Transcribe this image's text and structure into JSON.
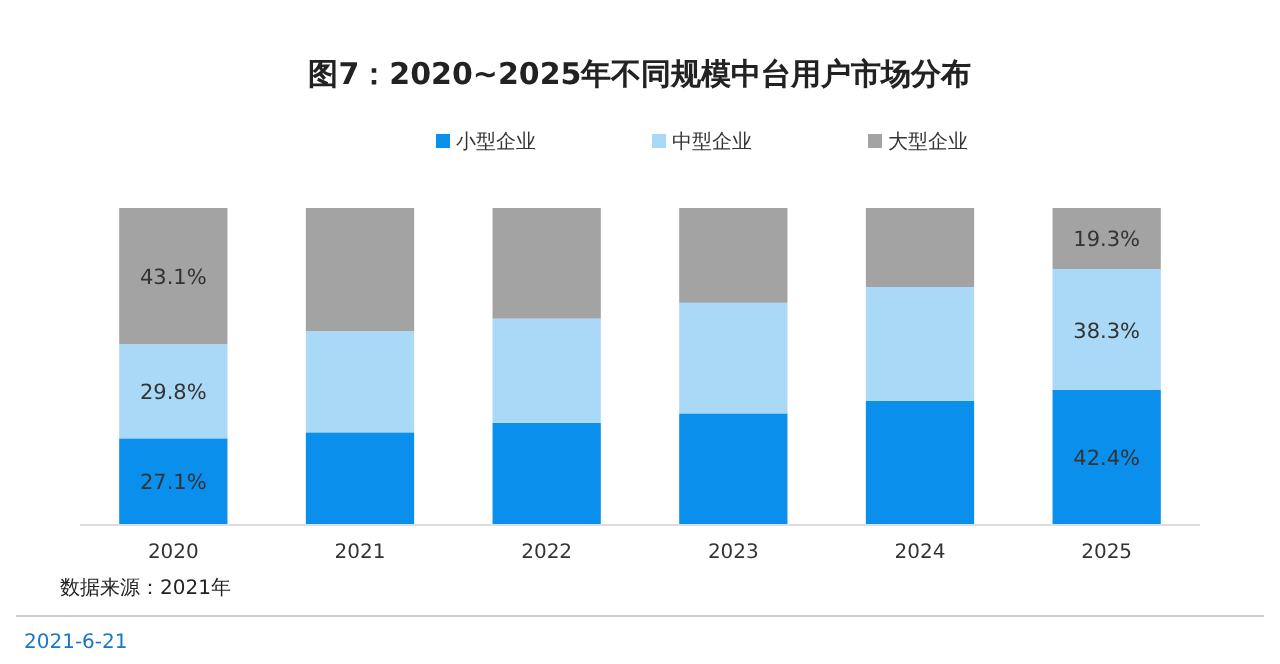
{
  "chart_data": {
    "type": "bar",
    "title": "图7：2020~2025年不同规模中台用户市场分布",
    "categories": [
      "2020",
      "2021",
      "2022",
      "2023",
      "2024",
      "2025"
    ],
    "stacked": true,
    "legend": "top",
    "series": [
      {
        "name": "小型企业",
        "color": "#0a8fec",
        "values": [
          27.1,
          29,
          32,
          35,
          39,
          42.4
        ],
        "value_labels": [
          "27.1%",
          null,
          null,
          null,
          null,
          "42.4%"
        ]
      },
      {
        "name": "中型企业",
        "color": "#a9d9f6",
        "values": [
          29.8,
          32,
          33,
          35,
          36,
          38.3
        ],
        "value_labels": [
          "29.8%",
          null,
          null,
          null,
          null,
          "38.3%"
        ]
      },
      {
        "name": "大型企业",
        "color": "#a3a3a3",
        "values": [
          43.1,
          39,
          35,
          30,
          25,
          19.3
        ],
        "value_labels": [
          "43.1%",
          null,
          null,
          null,
          null,
          "19.3%"
        ]
      }
    ],
    "annotations": [
      "数据来源：2021年",
      "2021-6-21"
    ]
  }
}
